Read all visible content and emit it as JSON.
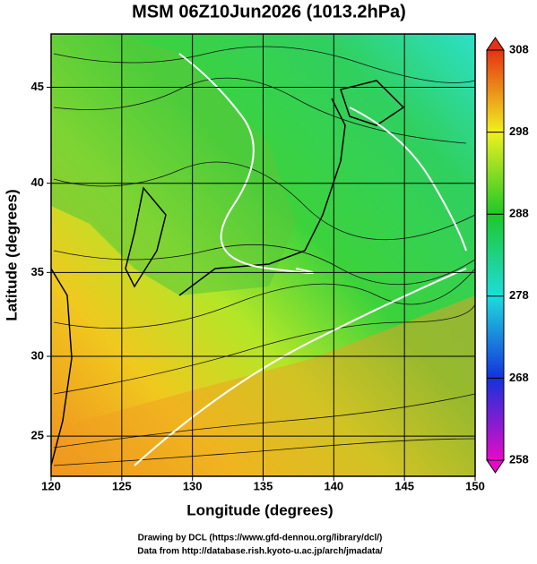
{
  "chart_data": {
    "type": "map",
    "title": "MSM 06Z10Jun2026 (1013.2hPa)",
    "x_label": "Longitude (degrees)",
    "y_label": "Latitude  (degrees)",
    "xlim": [
      120,
      150
    ],
    "xticks": [
      120,
      125,
      130,
      135,
      140,
      145,
      150
    ],
    "ylim": [
      22.4,
      47.6
    ],
    "yticks": [
      25,
      30,
      35,
      40,
      45
    ],
    "y_scale": "mercator",
    "grid": true,
    "colorbar": {
      "lim": [
        258,
        308
      ],
      "ticks": [
        258,
        268,
        278,
        288,
        298,
        308
      ],
      "colors": [
        "#e60ac8",
        "#1432dc",
        "#1edcdc",
        "#1ec828",
        "#f0f01e",
        "#e63214"
      ]
    },
    "credits": [
      "Drawing by DCL (https://www.gfd-dennou.org/library/dcl/)",
      "Data from http://database.rish.kyoto-u.ac.jp/arch/jmadata/"
    ]
  }
}
